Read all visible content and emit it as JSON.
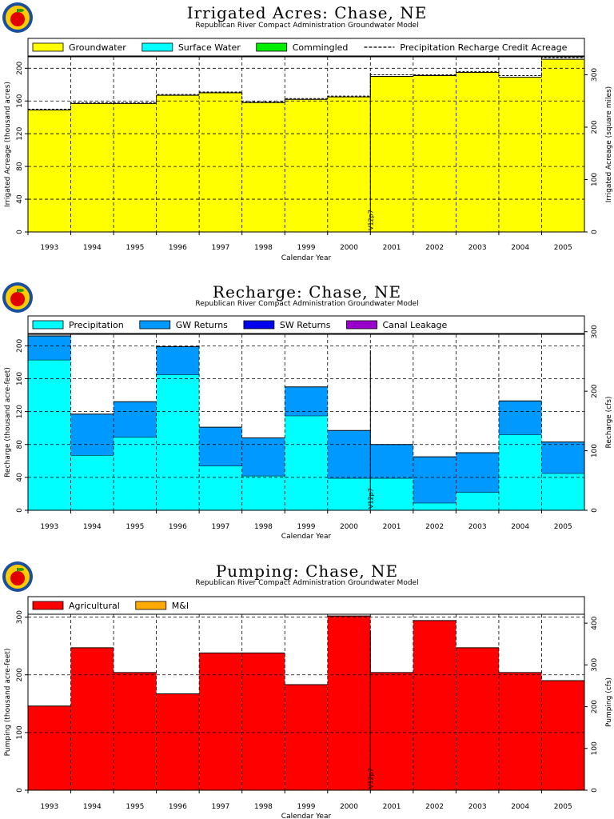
{
  "chart_data": [
    {
      "type": "area",
      "title": "Irrigated Acres: Chase, NE",
      "subtitle": "Republican River Compact Administration Groundwater Model",
      "xlabel": "Calendar Year",
      "ylabel": "Irrigated Acreage (thousand acres)",
      "ylabel_right": "Irrigated Acreage (square miles)",
      "categories": [
        "1993",
        "1994",
        "1995",
        "1996",
        "1997",
        "1998",
        "1999",
        "2000",
        "2001",
        "2002",
        "2003",
        "2004",
        "2005"
      ],
      "ylim": [
        0,
        214
      ],
      "yticks": [
        0,
        40.0,
        80.0,
        120,
        160,
        200
      ],
      "ylim_right": [
        0,
        334.4
      ],
      "yticks_right": [
        0,
        100,
        200,
        300
      ],
      "marker": {
        "label": "V12p7",
        "after_category": "2000"
      },
      "series": [
        {
          "name": "Groundwater",
          "color": "#ffff00",
          "values": [
            149,
            157,
            157,
            167,
            170,
            158,
            162,
            165,
            190,
            191,
            195,
            189,
            211
          ]
        },
        {
          "name": "Surface Water",
          "color": "#00ffff",
          "values": [
            0,
            0,
            0,
            0,
            0,
            0,
            0,
            0,
            0,
            0,
            0,
            0,
            0
          ]
        },
        {
          "name": "Commingled",
          "color": "#00ee00",
          "values": [
            0,
            0,
            0,
            0,
            0,
            0,
            0,
            0,
            0,
            0,
            0,
            0,
            0
          ]
        }
      ],
      "line_series": {
        "name": "Precipitation Recharge Credit Acreage",
        "values": [
          150,
          158,
          158,
          168,
          171,
          159,
          163,
          166,
          192,
          192,
          196,
          191,
          213
        ]
      }
    },
    {
      "type": "area",
      "title": "Recharge: Chase, NE",
      "subtitle": "Republican River Compact Administration Groundwater Model",
      "xlabel": "Calendar Year",
      "ylabel": "Recharge (thousand acre-feet)",
      "ylabel_right": "Recharge (cfs)",
      "categories": [
        "1993",
        "1994",
        "1995",
        "1996",
        "1997",
        "1998",
        "1999",
        "2000",
        "2001",
        "2002",
        "2003",
        "2004",
        "2005"
      ],
      "ylim": [
        0,
        214
      ],
      "yticks": [
        0,
        40.0,
        80.0,
        120,
        160,
        200
      ],
      "ylim_right": [
        0,
        295.6
      ],
      "yticks_right": [
        0,
        100,
        200,
        300
      ],
      "marker": {
        "label": "V12p7",
        "after_category": "2000"
      },
      "series": [
        {
          "name": "Precipitation",
          "color": "#00ffff",
          "values": [
            183,
            67,
            89,
            165,
            54,
            42,
            115,
            39,
            39,
            9,
            22,
            92,
            45
          ]
        },
        {
          "name": "GW Returns",
          "color": "#0099ff",
          "values": [
            29,
            50,
            43,
            34,
            47,
            46,
            35,
            58,
            41,
            56,
            48,
            41,
            38
          ]
        },
        {
          "name": "SW Returns",
          "color": "#0000ee",
          "values": [
            0,
            0,
            0,
            0,
            0,
            0,
            0,
            0,
            0,
            0,
            0,
            0,
            0
          ]
        },
        {
          "name": "Canal Leakage",
          "color": "#9900cc",
          "values": [
            0,
            0,
            0,
            0,
            0,
            0,
            0,
            0,
            0,
            0,
            0,
            0,
            0
          ]
        }
      ]
    },
    {
      "type": "area",
      "title": "Pumping: Chase, NE",
      "subtitle": "Republican River Compact Administration Groundwater Model",
      "xlabel": "Calendar Year",
      "ylabel": "Pumping (thousand acre-feet)",
      "ylabel_right": "Pumping (cfs)",
      "categories": [
        "1993",
        "1994",
        "1995",
        "1996",
        "1997",
        "1998",
        "1999",
        "2000",
        "2001",
        "2002",
        "2003",
        "2004",
        "2005"
      ],
      "ylim": [
        0,
        305
      ],
      "yticks": [
        0,
        100,
        200,
        300
      ],
      "ylim_right": [
        0,
        421.3
      ],
      "yticks_right": [
        0,
        100,
        200,
        300,
        400
      ],
      "marker": {
        "label": "V12p7",
        "after_category": "2000"
      },
      "series": [
        {
          "name": "Agricultural",
          "color": "#ff0000",
          "values": [
            146,
            247,
            204,
            167,
            238,
            238,
            183,
            302,
            204,
            294,
            247,
            204,
            190
          ]
        },
        {
          "name": "M&I",
          "color": "#ffaa00",
          "values": [
            0,
            0,
            0,
            0,
            0,
            0,
            0,
            0,
            0,
            0,
            0,
            0,
            0
          ]
        }
      ]
    }
  ]
}
